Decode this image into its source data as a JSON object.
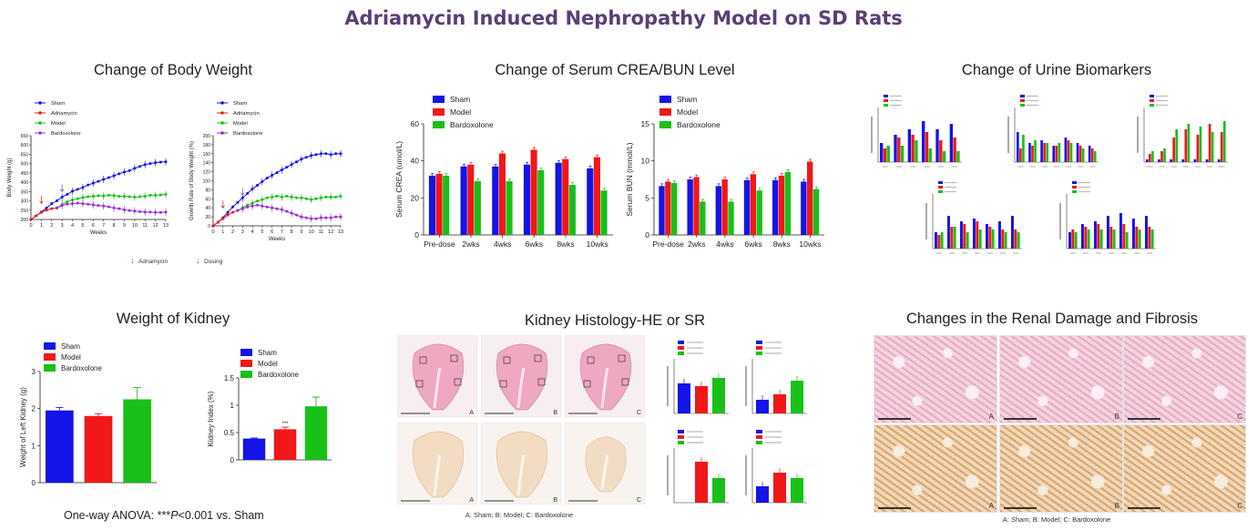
{
  "title": "Adriamycin Induced Nephropathy Model on SD Rats",
  "colors": {
    "sham": "#1414e6",
    "model": "#f01818",
    "bardoxolone": "#18c018",
    "adriamycin": "#d33",
    "purple": "#9b2bd6",
    "dosing": "#7a5fb0",
    "title": "#5b3e78"
  },
  "sections": {
    "body_weight": "Change of Body Weight",
    "crea_bun": "Change of Serum CREA/BUN Level",
    "urine": "Change of Urine Biomarkers",
    "kidney_weight": "Weight of Kidney",
    "histology": "Kidney Histology-HE or SR",
    "renal_damage": "Changes in the Renal Damage and Fibrosis"
  },
  "body_weight_legend": {
    "adriamycin": "Adriamycin",
    "dosing": "Dosing"
  },
  "anova_note": {
    "prefix": "One-way ANOVA:  ***",
    "p": "P",
    "suffix": "<0.001 vs. Sham"
  },
  "histology_caption": "A: Sham; B: Model; C: Bardoxolone",
  "renal_caption": "A: Sham; B: Model; C: Bardoxolone",
  "panel_letters": [
    "A",
    "B",
    "C"
  ],
  "chart_data": [
    {
      "id": "body-weight",
      "type": "line",
      "xlabel": "Weeks",
      "ylabel": "Body Weight (g)",
      "x": [
        0,
        0.5,
        1,
        1.5,
        2,
        2.5,
        3,
        3.5,
        4,
        4.5,
        5,
        5.5,
        6,
        6.5,
        7,
        7.5,
        8,
        8.5,
        9,
        9.5,
        10,
        10.5,
        11,
        11.5,
        12,
        12.5,
        13
      ],
      "xticks": [
        0,
        1,
        2,
        3,
        4,
        5,
        6,
        7,
        8,
        9,
        10,
        11,
        12,
        13
      ],
      "yticks": [
        200,
        250,
        300,
        350,
        400,
        450,
        500,
        550,
        600,
        650
      ],
      "ylim": [
        200,
        650
      ],
      "series": [
        {
          "name": "Sham",
          "color": "sham",
          "marker": "circle",
          "values": [
            200,
            220,
            240,
            262,
            285,
            300,
            320,
            335,
            352,
            362,
            372,
            385,
            395,
            405,
            415,
            425,
            435,
            445,
            455,
            462,
            475,
            485,
            495,
            500,
            505,
            508,
            510
          ]
        },
        {
          "name": "Adriamycin",
          "color": "model",
          "marker": "square",
          "values": [
            200,
            220,
            238,
            250,
            258,
            262,
            null,
            null,
            null,
            null,
            null,
            null,
            null,
            null,
            null,
            null,
            null,
            null,
            null,
            null,
            null,
            null,
            null,
            null,
            null,
            null,
            null
          ]
        },
        {
          "name": "Model",
          "color": "bardoxolone",
          "marker": "triangle",
          "values": [
            null,
            null,
            null,
            null,
            null,
            262,
            280,
            295,
            305,
            312,
            318,
            322,
            325,
            328,
            326,
            330,
            328,
            325,
            325,
            322,
            320,
            322,
            325,
            330,
            330,
            332,
            335
          ]
        },
        {
          "name": "Bardoxolone",
          "color": "purple",
          "marker": "triangle-down",
          "values": [
            null,
            null,
            null,
            null,
            null,
            262,
            275,
            282,
            285,
            288,
            285,
            282,
            278,
            275,
            272,
            268,
            262,
            258,
            252,
            248,
            245,
            242,
            240,
            240,
            238,
            238,
            240
          ]
        }
      ]
    },
    {
      "id": "growth-rate",
      "type": "line",
      "xlabel": "Weeks",
      "ylabel": "Growth Rate of Body Weight (%)",
      "x": [
        0,
        0.5,
        1,
        1.5,
        2,
        2.5,
        3,
        3.5,
        4,
        4.5,
        5,
        5.5,
        6,
        6.5,
        7,
        7.5,
        8,
        8.5,
        9,
        9.5,
        10,
        10.5,
        11,
        11.5,
        12,
        12.5,
        13
      ],
      "xticks": [
        0,
        1,
        2,
        3,
        4,
        5,
        6,
        7,
        8,
        9,
        10,
        11,
        12,
        13
      ],
      "yticks": [
        0,
        20,
        40,
        60,
        80,
        100,
        120,
        140,
        160,
        180,
        200
      ],
      "ylim": [
        0,
        200
      ],
      "series": [
        {
          "name": "Sham",
          "color": "sham",
          "marker": "circle",
          "values": [
            0,
            8,
            18,
            30,
            42,
            52,
            62,
            72,
            82,
            90,
            98,
            106,
            112,
            118,
            124,
            130,
            136,
            142,
            148,
            152,
            156,
            158,
            160,
            160,
            158,
            160,
            160
          ]
        },
        {
          "name": "Adriamycin",
          "color": "model",
          "marker": "square",
          "values": [
            0,
            8,
            16,
            24,
            30,
            34,
            null,
            null,
            null,
            null,
            null,
            null,
            null,
            null,
            null,
            null,
            null,
            null,
            null,
            null,
            null,
            null,
            null,
            null,
            null,
            null,
            null
          ]
        },
        {
          "name": "Model",
          "color": "bardoxolone",
          "marker": "triangle",
          "values": [
            null,
            null,
            null,
            null,
            null,
            34,
            40,
            46,
            50,
            55,
            58,
            62,
            64,
            66,
            64,
            66,
            64,
            62,
            62,
            60,
            58,
            60,
            62,
            64,
            64,
            64,
            66
          ]
        },
        {
          "name": "Bardoxolone",
          "color": "purple",
          "marker": "triangle-down",
          "values": [
            null,
            null,
            null,
            null,
            null,
            34,
            38,
            42,
            44,
            46,
            44,
            42,
            40,
            38,
            36,
            32,
            28,
            24,
            20,
            18,
            16,
            16,
            18,
            18,
            18,
            20,
            20
          ]
        }
      ]
    },
    {
      "id": "crea",
      "type": "bar",
      "ylabel": "Serum CREA (umol/L)",
      "categories": [
        "Pre-dose",
        "2wks",
        "4wks",
        "6wks",
        "8wks",
        "10wks"
      ],
      "yticks": [
        0,
        20,
        40,
        60
      ],
      "ylim": [
        0,
        60
      ],
      "legend": [
        "Sham",
        "Model",
        "Bardoxolone"
      ],
      "series": [
        {
          "name": "Sham",
          "color": "sham",
          "values": [
            32,
            37,
            37,
            38,
            39,
            36
          ]
        },
        {
          "name": "Model",
          "color": "model",
          "values": [
            33,
            38,
            44,
            46,
            41,
            42
          ]
        },
        {
          "name": "Bardoxolone",
          "color": "bardoxolone",
          "values": [
            32,
            29,
            29,
            35,
            27,
            24
          ]
        }
      ]
    },
    {
      "id": "bun",
      "type": "bar",
      "ylabel": "Serum BUN (mmol/L)",
      "categories": [
        "Pre-dose",
        "2wks",
        "4wks",
        "6wks",
        "8wks",
        "10wks"
      ],
      "yticks": [
        0,
        5,
        10,
        15
      ],
      "ylim": [
        0,
        15
      ],
      "legend": [
        "Sham",
        "Model",
        "Bardoxolone"
      ],
      "series": [
        {
          "name": "Sham",
          "color": "sham",
          "values": [
            6.6,
            7.5,
            6.6,
            7.4,
            7.4,
            7.2
          ]
        },
        {
          "name": "Model",
          "color": "model",
          "values": [
            7.2,
            7.8,
            7.5,
            8.2,
            8.0,
            9.9
          ]
        },
        {
          "name": "Bardoxolone",
          "color": "bardoxolone",
          "values": [
            7.0,
            4.5,
            4.5,
            6.0,
            8.5,
            6.2
          ]
        }
      ]
    },
    {
      "id": "kidney-weight",
      "type": "bar",
      "ylabel": "Weight of Left Kidney (g)",
      "categories": [
        "Sham",
        "Model",
        "Bardoxolone"
      ],
      "yticks": [
        0,
        1,
        2,
        3
      ],
      "ylim": [
        0,
        3
      ],
      "legend": [
        "Sham",
        "Model",
        "Bardoxolone"
      ],
      "values": [
        1.95,
        1.8,
        2.25
      ],
      "errors": [
        0.08,
        0.06,
        0.32
      ]
    },
    {
      "id": "kidney-index",
      "type": "bar",
      "ylabel": "Kidney Index (%)",
      "categories": [
        "Sham",
        "Model",
        "Bardoxolone"
      ],
      "yticks": [
        0,
        0.5,
        1.0,
        1.5
      ],
      "ylim": [
        0,
        1.5
      ],
      "legend": [
        "Sham",
        "Model",
        "Bardoxolone"
      ],
      "values": [
        0.39,
        0.56,
        0.98
      ],
      "errors": [
        0.01,
        0.04,
        0.17
      ],
      "annotations": [
        "",
        "***",
        ""
      ]
    }
  ]
}
